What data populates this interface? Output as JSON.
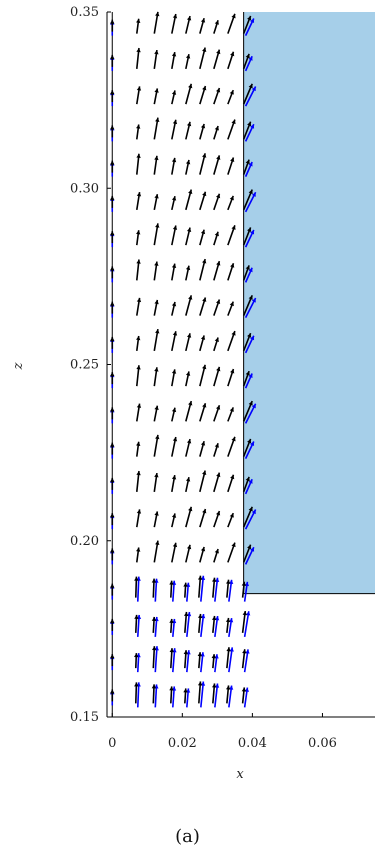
{
  "caption": "(a)",
  "chart_data": {
    "type": "quiver",
    "xlabel": "x",
    "ylabel": "z",
    "xlim": [
      -0.0015,
      0.075
    ],
    "ylim": [
      0.15,
      0.35
    ],
    "xticks": [
      {
        "value": 0,
        "label": "0"
      },
      {
        "value": 0.02,
        "label": "0.02"
      },
      {
        "value": 0.04,
        "label": "0.04"
      },
      {
        "value": 0.06,
        "label": "0.06"
      }
    ],
    "yticks": [
      {
        "value": 0.15,
        "label": "0.15"
      },
      {
        "value": 0.2,
        "label": "0.20"
      },
      {
        "value": 0.25,
        "label": "0.25"
      },
      {
        "value": 0.3,
        "label": "0.30"
      },
      {
        "value": 0.35,
        "label": "0.35"
      }
    ],
    "region": {
      "x": [
        0.0375,
        0.075
      ],
      "z": [
        0.185,
        0.35
      ],
      "color": "#a6cfe9"
    },
    "interface_x": 0.0375,
    "interface_z_bottom": 0.185,
    "series": [
      {
        "color": "#0000ff"
      },
      {
        "color": "#000000"
      }
    ],
    "columns_x": [
      0.0,
      0.007,
      0.012,
      0.017,
      0.021,
      0.025,
      0.029,
      0.033,
      0.0375
    ],
    "rows_z": [
      0.155,
      0.165,
      0.175,
      0.185,
      0.195,
      0.205,
      0.215,
      0.225,
      0.235,
      0.245,
      0.255,
      0.265,
      0.275,
      0.285,
      0.295,
      0.305,
      0.315,
      0.325,
      0.335,
      0.345
    ]
  }
}
